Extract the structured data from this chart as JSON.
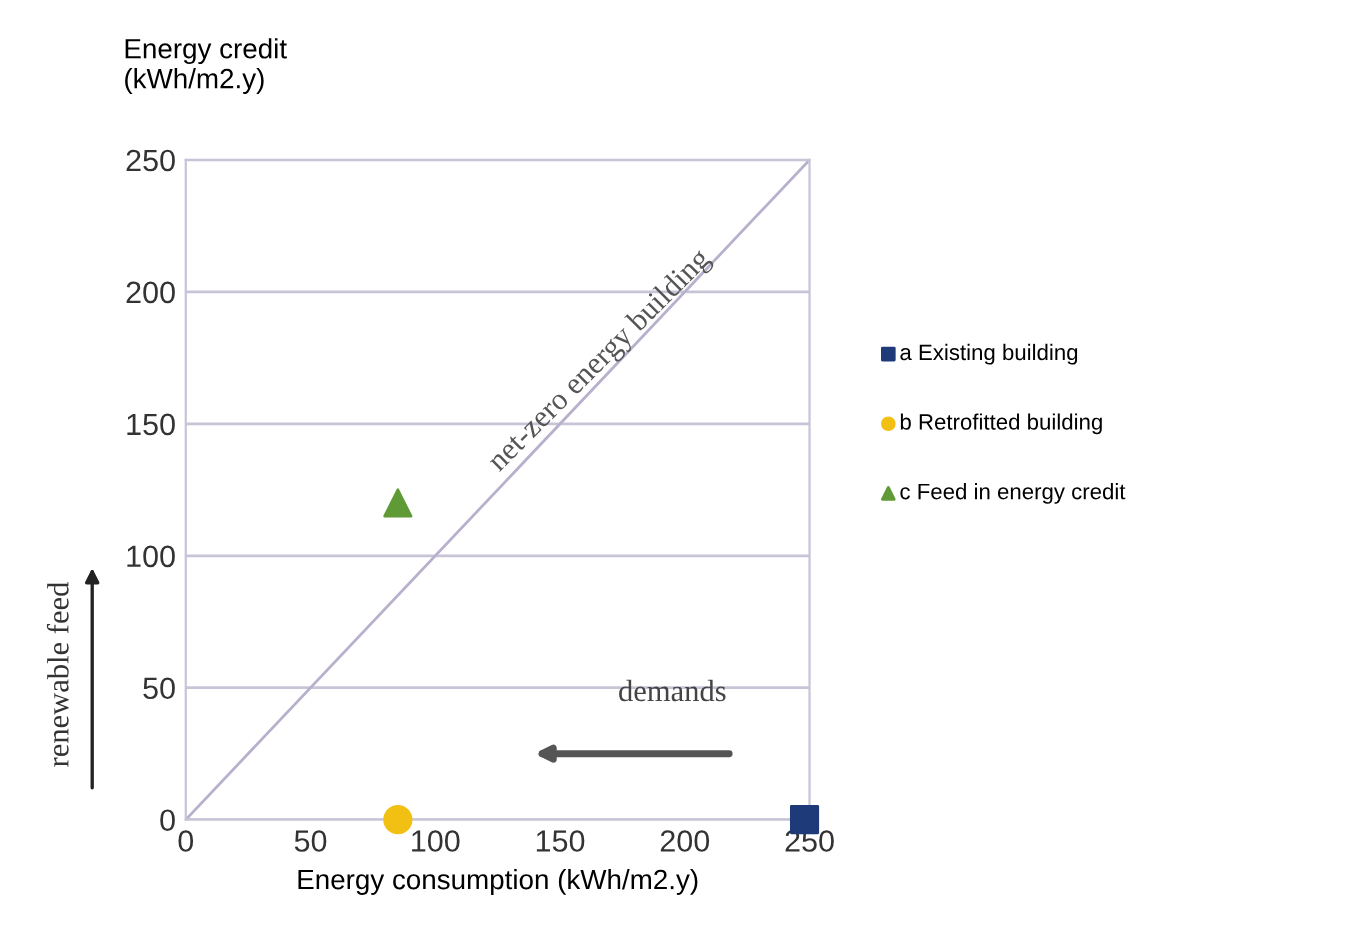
{
  "chart_data": {
    "type": "scatter",
    "xlabel": "Energy consumption (kWh/m2.y)",
    "ylabel": "Energy credit\n(kWh/m2.y)",
    "xlim": [
      0,
      250
    ],
    "ylim": [
      0,
      250
    ],
    "xticks": [
      0,
      50,
      100,
      150,
      200,
      250
    ],
    "yticks": [
      0,
      50,
      100,
      150,
      200,
      250
    ],
    "grid": "y",
    "legend": "right",
    "series": [
      {
        "type": "line",
        "x": [
          0,
          250
        ],
        "values": [
          0,
          250
        ],
        "color": "#b8b0cc",
        "marker": "none",
        "line_style": "solid"
      },
      {
        "name": "a Existing building",
        "x": [
          248
        ],
        "values": [
          0
        ],
        "color": "#1f3a78",
        "marker": "square"
      },
      {
        "name": "b Retrofitted building",
        "x": [
          85
        ],
        "values": [
          0
        ],
        "color": "#f2c012",
        "marker": "circle"
      },
      {
        "name": "c Feed in energy credit",
        "x": [
          85
        ],
        "values": [
          120
        ],
        "color": "#5f9a36",
        "marker": "triangle"
      }
    ],
    "annotations": [
      {
        "text": "net-zero energy building",
        "x": 170,
        "y": 170
      },
      "demands",
      "renewable feed"
    ]
  }
}
